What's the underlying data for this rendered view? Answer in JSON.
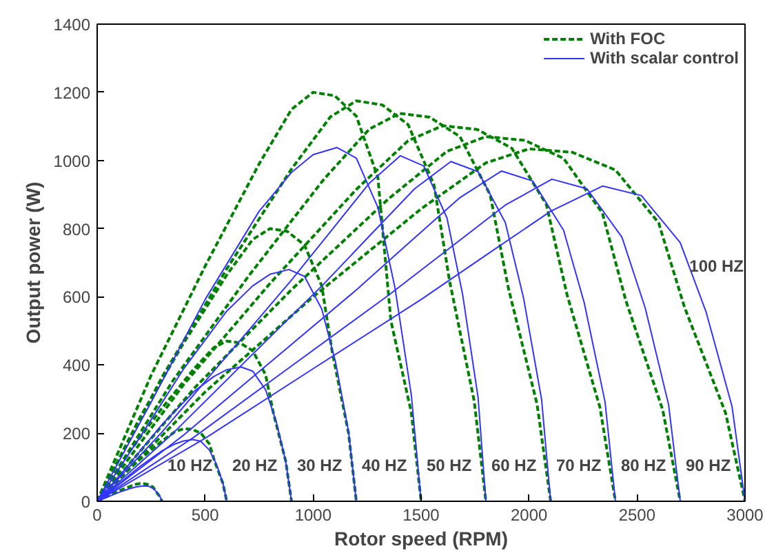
{
  "chart_data": {
    "type": "line",
    "xlabel": "Rotor speed (RPM)",
    "ylabel": "Output power (W)",
    "xlim": [
      0,
      3000
    ],
    "xticks": [
      0,
      500,
      1000,
      1500,
      2000,
      2500,
      3000
    ],
    "ylim": [
      0,
      1400
    ],
    "yticks": [
      0,
      200,
      400,
      600,
      800,
      1000,
      1200,
      1400
    ],
    "grid": false,
    "legend": "top right",
    "marker": "none",
    "series": [
      {
        "name": "With FOC",
        "color": "#008000",
        "line_style": "dashed",
        "x": [
          0,
          50,
          100,
          150,
          180,
          200,
          220,
          240,
          260,
          272,
          291,
          300
        ],
        "values": [
          0,
          16,
          30,
          43,
          50,
          52,
          51,
          49,
          41,
          29,
          13,
          0
        ]
      },
      {
        "color": "#008000",
        "line_style": "dashed",
        "x": [
          0,
          100,
          200,
          300,
          360,
          400,
          440,
          480,
          520,
          544,
          582,
          600
        ],
        "values": [
          0,
          66,
          124,
          177,
          204,
          213,
          211,
          200,
          168,
          117,
          53,
          0
        ]
      },
      {
        "color": "#008000",
        "line_style": "dashed",
        "x": [
          0,
          150,
          300,
          450,
          540,
          600,
          660,
          720,
          780,
          816,
          873,
          900
        ],
        "values": [
          0,
          146,
          273,
          390,
          451,
          470,
          465,
          442,
          371,
          259,
          118,
          0
        ]
      },
      {
        "color": "#008000",
        "line_style": "dashed",
        "x": [
          0,
          200,
          400,
          600,
          720,
          800,
          880,
          960,
          1040,
          1088,
          1164,
          1200
        ],
        "values": [
          0,
          248,
          464,
          664,
          768,
          800,
          792,
          752,
          632,
          440,
          200,
          0
        ]
      },
      {
        "color": "#008000",
        "line_style": "dashed",
        "x": [
          0,
          250,
          500,
          750,
          900,
          1000,
          1100,
          1200,
          1300,
          1360,
          1455,
          1500
        ],
        "values": [
          0,
          370,
          690,
          990,
          1150,
          1200,
          1190,
          1130,
          950,
          530,
          260,
          0
        ]
      },
      {
        "color": "#008000",
        "line_style": "dashed",
        "x": [
          0,
          300,
          600,
          900,
          1080,
          1200,
          1320,
          1440,
          1560,
          1632,
          1746,
          1800
        ],
        "values": [
          0,
          364,
          682,
          975,
          1128,
          1175,
          1163,
          1105,
          928,
          646,
          294,
          0
        ]
      },
      {
        "color": "#008000",
        "line_style": "dashed",
        "x": [
          0,
          350,
          700,
          1050,
          1260,
          1400,
          1540,
          1680,
          1820,
          1904,
          2037,
          2100
        ],
        "values": [
          0,
          353,
          660,
          945,
          1092,
          1138,
          1127,
          1070,
          899,
          626,
          285,
          0
        ]
      },
      {
        "color": "#008000",
        "line_style": "dashed",
        "x": [
          0,
          400,
          800,
          1200,
          1440,
          1600,
          1760,
          1920,
          2080,
          2176,
          2328,
          2400
        ],
        "values": [
          0,
          342,
          639,
          915,
          1058,
          1102,
          1091,
          1036,
          871,
          606,
          276,
          0
        ]
      },
      {
        "color": "#008000",
        "line_style": "dashed",
        "x": [
          0,
          450,
          900,
          1350,
          1620,
          1800,
          1980,
          2160,
          2340,
          2448,
          2619,
          2700
        ],
        "values": [
          0,
          332,
          621,
          888,
          1027,
          1070,
          1059,
          1006,
          845,
          589,
          268,
          0
        ]
      },
      {
        "color": "#008000",
        "line_style": "dashed",
        "x": [
          0,
          500,
          1000,
          1500,
          1800,
          2000,
          2200,
          2400,
          2600,
          2720,
          2910,
          3000
        ],
        "values": [
          0,
          321,
          600,
          858,
          993,
          1034,
          1024,
          972,
          817,
          569,
          259,
          0
        ]
      },
      {
        "name": "With scalar control",
        "color": "#3333ff",
        "line_style": "solid",
        "x": [
          0,
          50,
          100,
          150,
          180,
          200,
          222,
          240,
          260,
          276,
          291,
          300
        ],
        "values": [
          0,
          13,
          26,
          37,
          42,
          44,
          45,
          44,
          37,
          27,
          14,
          0
        ]
      },
      {
        "color": "#3333ff",
        "line_style": "solid",
        "x": [
          0,
          100,
          200,
          300,
          360,
          400,
          444,
          480,
          520,
          552,
          582,
          600
        ],
        "values": [
          0,
          51,
          103,
          148,
          168,
          177,
          181,
          176,
          150,
          109,
          54,
          0
        ]
      },
      {
        "color": "#3333ff",
        "line_style": "solid",
        "x": [
          0,
          150,
          300,
          450,
          540,
          600,
          666,
          720,
          780,
          828,
          873,
          900
        ],
        "values": [
          0,
          110,
          225,
          323,
          366,
          386,
          394,
          382,
          327,
          236,
          118,
          0
        ]
      },
      {
        "color": "#3333ff",
        "line_style": "solid",
        "x": [
          0,
          200,
          400,
          600,
          720,
          800,
          888,
          960,
          1040,
          1104,
          1164,
          1200
        ],
        "values": [
          0,
          190,
          388,
          558,
          632,
          666,
          680,
          660,
          564,
          408,
          204,
          0
        ]
      },
      {
        "color": "#3333ff",
        "line_style": "solid",
        "x": [
          0,
          250,
          500,
          750,
          900,
          1000,
          1110,
          1200,
          1300,
          1380,
          1455,
          1500
        ],
        "values": [
          0,
          291,
          592,
          851,
          965,
          1017,
          1038,
          1007,
          862,
          623,
          311,
          0
        ]
      },
      {
        "color": "#3333ff",
        "line_style": "solid",
        "x": [
          0,
          300,
          600,
          900,
          1080,
          1260,
          1404,
          1512,
          1620,
          1692,
          1764,
          1800
        ],
        "values": [
          0,
          203,
          426,
          649,
          791,
          933,
          1014,
          984,
          831,
          608,
          304,
          0
        ]
      },
      {
        "color": "#3333ff",
        "line_style": "solid",
        "x": [
          0,
          350,
          700,
          1050,
          1260,
          1470,
          1638,
          1764,
          1890,
          1974,
          2058,
          2100
        ],
        "values": [
          0,
          199,
          419,
          638,
          778,
          917,
          997,
          967,
          818,
          598,
          299,
          0
        ]
      },
      {
        "color": "#3333ff",
        "line_style": "solid",
        "x": [
          0,
          400,
          800,
          1200,
          1440,
          1680,
          1872,
          2016,
          2160,
          2256,
          2352,
          2400
        ],
        "values": [
          0,
          194,
          407,
          620,
          756,
          891,
          969,
          940,
          795,
          581,
          291,
          0
        ]
      },
      {
        "color": "#3333ff",
        "line_style": "solid",
        "x": [
          0,
          450,
          900,
          1350,
          1620,
          1890,
          2106,
          2268,
          2430,
          2538,
          2646,
          2700
        ],
        "values": [
          0,
          189,
          397,
          605,
          737,
          869,
          945,
          917,
          775,
          567,
          284,
          0
        ]
      },
      {
        "color": "#3333ff",
        "line_style": "solid",
        "x": [
          0,
          500,
          1000,
          1500,
          1800,
          2100,
          2340,
          2520,
          2700,
          2820,
          2940,
          3000
        ],
        "values": [
          0,
          185,
          389,
          592,
          722,
          851,
          925,
          897,
          759,
          555,
          278,
          0
        ]
      }
    ],
    "annotations": [
      "10 HZ",
      "20 HZ",
      "30 HZ",
      "40 HZ",
      "50 HZ",
      "60 HZ",
      "70 HZ",
      "80 HZ",
      "90 HZ",
      "100 HZ"
    ]
  }
}
